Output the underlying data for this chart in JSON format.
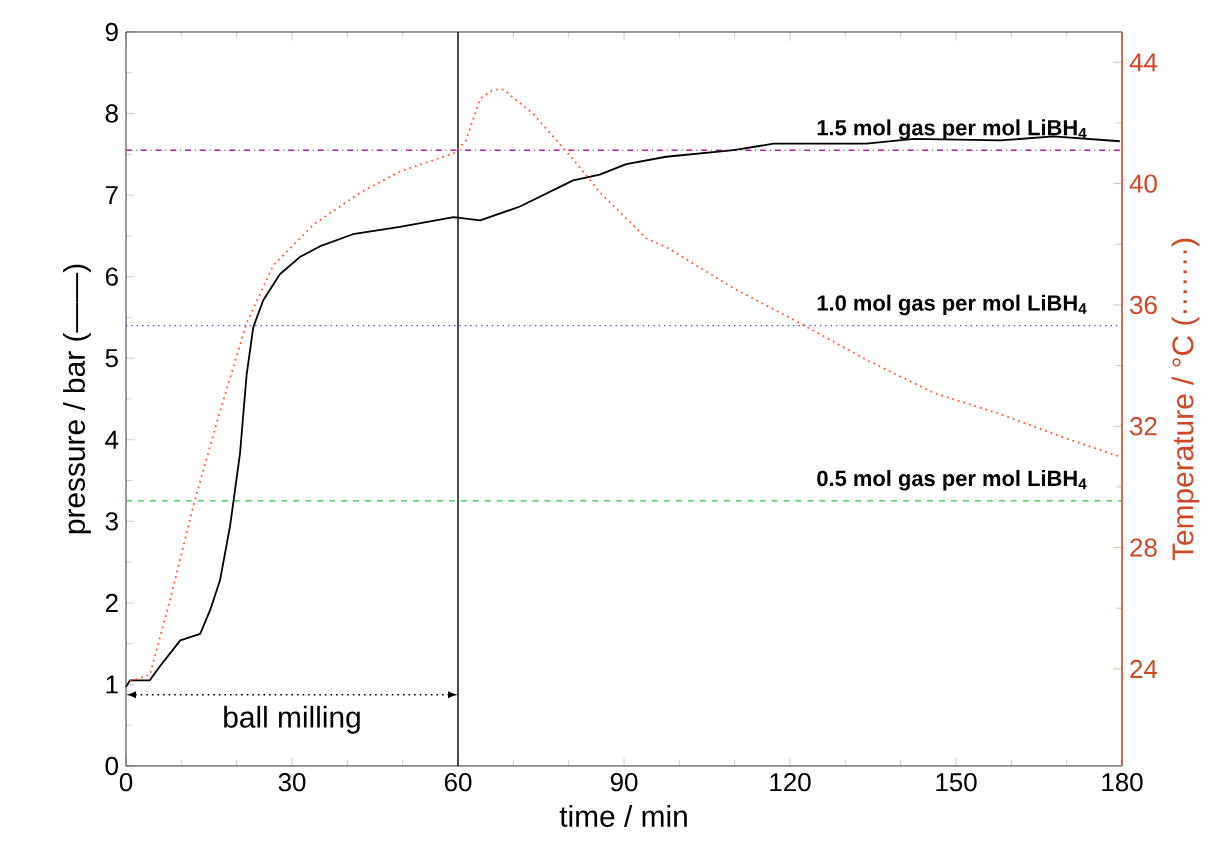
{
  "chart_data": {
    "type": "line",
    "xlabel": "time / min",
    "ylabel": "pressure / bar (——)",
    "y2label": "Temperature / °C (·······)",
    "xlim": [
      0,
      180
    ],
    "xticks": [
      0,
      30,
      60,
      90,
      120,
      150,
      180
    ],
    "ylim": [
      0,
      9
    ],
    "yticks": [
      0,
      1,
      2,
      3,
      4,
      5,
      6,
      7,
      8,
      9
    ],
    "y2lim": [
      20.8,
      45.0
    ],
    "y2ticks": [
      24,
      28,
      32,
      36,
      40,
      44
    ],
    "grid": false,
    "marker": "none",
    "series": [
      {
        "color": "#000000",
        "line_style": "solid",
        "x": [
          0,
          0.7,
          4.3,
          6.1,
          9.8,
          13.4,
          15.2,
          17,
          18.8,
          20.6,
          21.8,
          23,
          24.8,
          27.8,
          31.4,
          35,
          41,
          49.5,
          59.2,
          64,
          71.2,
          80.8,
          85.6,
          90.4,
          97.6,
          109.8,
          117,
          133.8,
          142.4,
          158,
          167.6,
          179.6
        ],
        "values": [
          0.97,
          1.05,
          1.05,
          1.22,
          1.54,
          1.62,
          1.91,
          2.28,
          2.94,
          3.83,
          4.8,
          5.38,
          5.71,
          6.03,
          6.24,
          6.37,
          6.52,
          6.61,
          6.73,
          6.69,
          6.86,
          7.18,
          7.25,
          7.38,
          7.47,
          7.55,
          7.63,
          7.63,
          7.69,
          7.67,
          7.72,
          7.66
        ]
      },
      {
        "color": "#ff5a30",
        "line_style": "dotted",
        "axis": "y2",
        "x": [
          0.7,
          4.3,
          8,
          12.2,
          17,
          21.8,
          26.6,
          33.9,
          42.3,
          49.5,
          59.2,
          61.4,
          64,
          66.4,
          68.2,
          73.6,
          80.8,
          85.7,
          94,
          97.7,
          109.8,
          121.8,
          133.7,
          146,
          158,
          169.9,
          179.6
        ],
        "values": [
          23.6,
          23.8,
          26.3,
          29.4,
          32.5,
          35.4,
          37.3,
          38.65,
          39.7,
          40.4,
          41.0,
          41.4,
          42.8,
          43.1,
          43.1,
          42.3,
          40.8,
          39.7,
          38.2,
          37.9,
          36.55,
          35.4,
          34.2,
          33.1,
          32.4,
          31.6,
          31.0
        ]
      }
    ],
    "ref_lines": [
      {
        "axis": "y",
        "value": 7.55,
        "label": "1.5 mol gas per mol LiBH$_{4}$",
        "color": "#b020a0",
        "line_style": "dashdot"
      },
      {
        "axis": "y",
        "value": 5.4,
        "label": "1.0 mol gas per mol LiBH$_{4}$",
        "color": "#4848c8",
        "line_style": "dotted"
      },
      {
        "axis": "y",
        "value": 3.25,
        "label": "0.5 mol gas per mol LiBH$_{4}$",
        "color": "#30c040",
        "line_style": "dashed"
      },
      {
        "axis": "x",
        "value": 60,
        "color": "#000000",
        "line_style": "solid"
      }
    ],
    "annotations": [
      "ball milling"
    ]
  }
}
